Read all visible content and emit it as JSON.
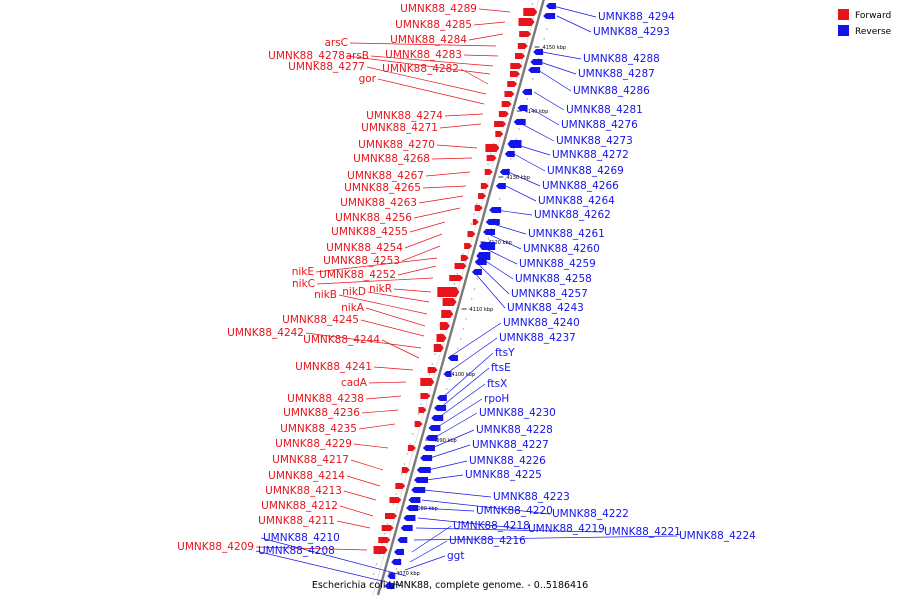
{
  "caption": "Escherichia coli UMNK88, complete genome. - 0..5186416",
  "legend": [
    {
      "label": "Forward",
      "color": "#e8141b"
    },
    {
      "label": "Reverse",
      "color": "#1414e8"
    }
  ],
  "colors": {
    "forward": "#e8141b",
    "reverse": "#1414e8",
    "backbone": "#7a7a7a"
  },
  "ticks": [
    "4070 kbp",
    "4080 kbp",
    "4090 kbp",
    "4100 kbp",
    "4110 kbp",
    "4120 kbp",
    "4130 kbp",
    "4140 kbp",
    "4150 kbp"
  ],
  "forward_genes": [
    "UMNK88_4289",
    "UMNK88_4285",
    "UMNK88_4284",
    "arsC",
    "UMNK88_4283",
    "arsB",
    "UMNK88_4278",
    "UMNK88_4282",
    "UMNK88_4277",
    "gor",
    "UMNK88_4274",
    "UMNK88_4271",
    "UMNK88_4270",
    "UMNK88_4268",
    "UMNK88_4267",
    "UMNK88_4265",
    "UMNK88_4263",
    "UMNK88_4256",
    "UMNK88_4255",
    "UMNK88_4254",
    "UMNK88_4253",
    "nikE",
    "UMNK88_4252",
    "nikC",
    "nikR",
    "nikD",
    "nikB",
    "nikA",
    "UMNK88_4245",
    "UMNK88_4242",
    "UMNK88_4244",
    "UMNK88_4241",
    "cadA",
    "UMNK88_4238",
    "UMNK88_4236",
    "UMNK88_4235",
    "UMNK88_4229",
    "UMNK88_4217",
    "UMNK88_4214",
    "UMNK88_4213",
    "UMNK88_4212",
    "UMNK88_4211",
    "UMNK88_4209"
  ],
  "reverse_genes": [
    "UMNK88_4294",
    "UMNK88_4293",
    "UMNK88_4288",
    "UMNK88_4287",
    "UMNK88_4286",
    "UMNK88_4281",
    "UMNK88_4276",
    "UMNK88_4273",
    "UMNK88_4272",
    "UMNK88_4269",
    "UMNK88_4266",
    "UMNK88_4264",
    "UMNK88_4262",
    "UMNK88_4261",
    "UMNK88_4260",
    "UMNK88_4259",
    "UMNK88_4258",
    "UMNK88_4257",
    "UMNK88_4243",
    "UMNK88_4240",
    "UMNK88_4237",
    "ftsY",
    "ftsE",
    "ftsX",
    "rpoH",
    "UMNK88_4230",
    "UMNK88_4228",
    "UMNK88_4227",
    "UMNK88_4226",
    "UMNK88_4225",
    "UMNK88_4223",
    "UMNK88_4222",
    "UMNK88_4220",
    "UMNK88_4219",
    "UMNK88_4221",
    "UMNK88_4224",
    "UMNK88_4218",
    "UMNK88_4216",
    "UMNK88_4210",
    "UMNK88_4208",
    "ggt"
  ]
}
